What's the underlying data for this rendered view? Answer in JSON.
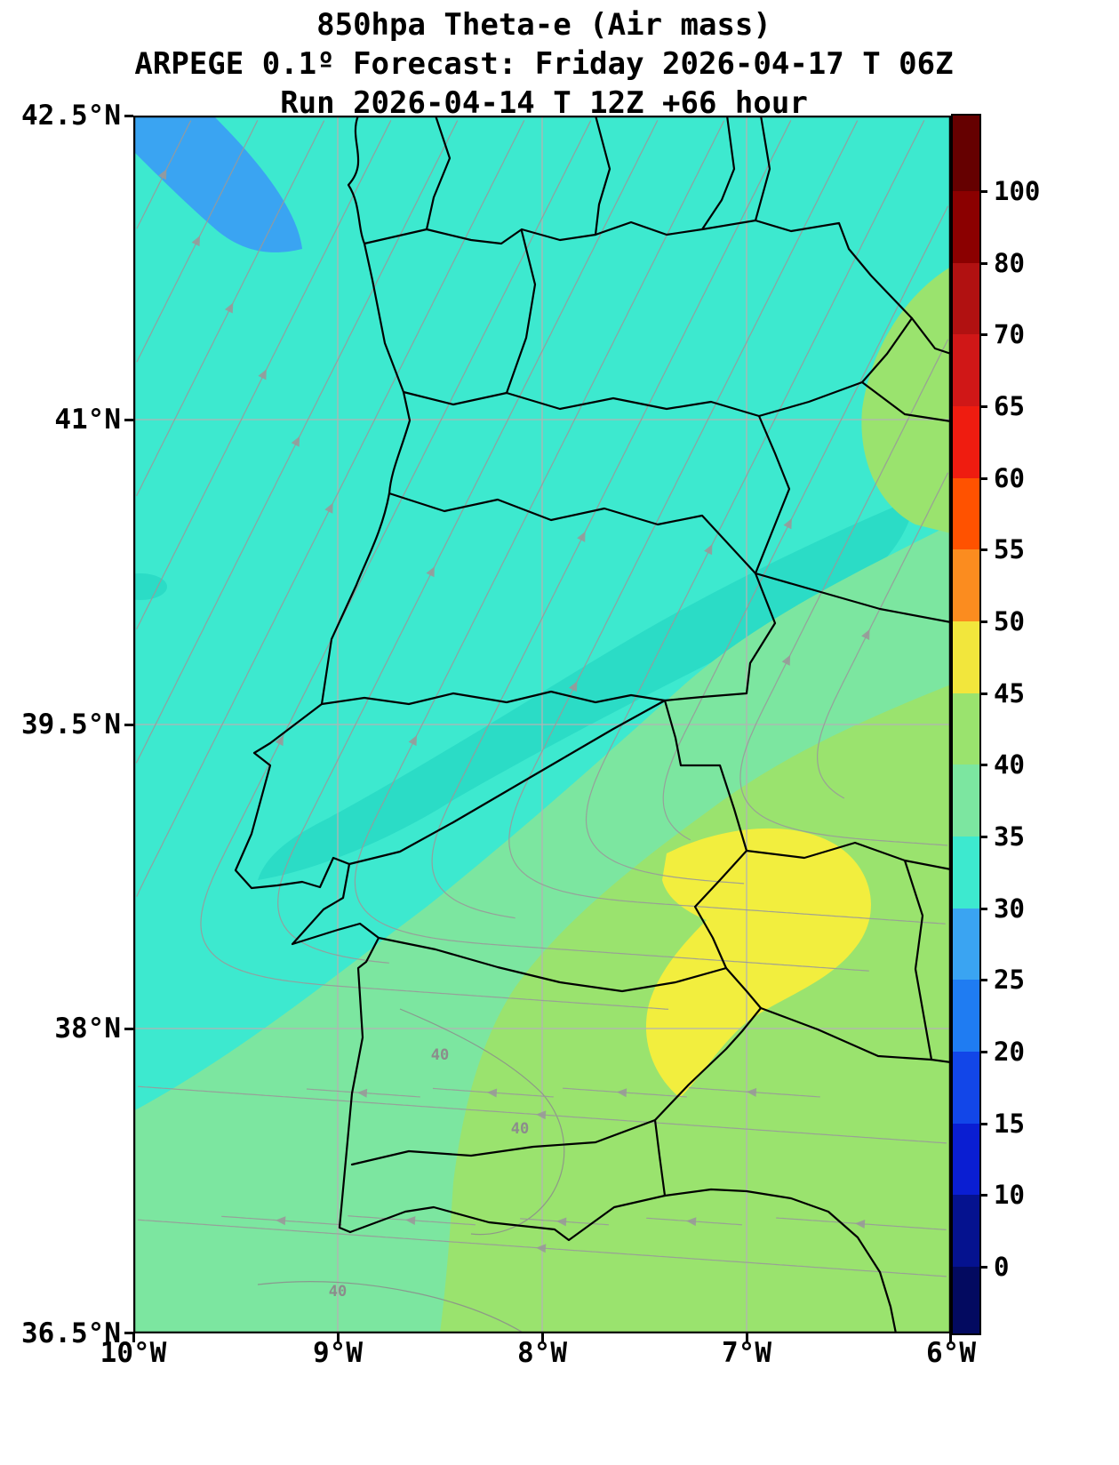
{
  "title": {
    "line1": "850hpa Theta-e (Air mass)",
    "line2": "ARPEGE 0.1º Forecast: Friday 2026-04-17 T 06Z",
    "line3": "Run 2026-04-14 T 12Z +66 hour"
  },
  "axes": {
    "y_ticks": [
      "42.5°N",
      "41°N",
      "39.5°N",
      "38°N",
      "36.5°N"
    ],
    "x_ticks": [
      "10°W",
      "9°W",
      "8°W",
      "7°W",
      "6°W"
    ]
  },
  "colorbar": {
    "tick_labels": [
      "100",
      "80",
      "70",
      "65",
      "60",
      "55",
      "50",
      "45",
      "40",
      "35",
      "30",
      "25",
      "20",
      "15",
      "10",
      "0"
    ],
    "segment_colors_top_to_bottom": [
      "#650000",
      "#8b0000",
      "#b11111",
      "#d01717",
      "#ef1c10",
      "#ff5200",
      "#fb8c1f",
      "#f2e63c",
      "#9ae36e",
      "#7ce6a0",
      "#3de9cf",
      "#3aa4f2",
      "#1f7cf2",
      "#1246e8",
      "#0a1ed2",
      "#05128f",
      "#030a60"
    ]
  },
  "map": {
    "colors": {
      "ocean_cyan": "#3de9cf",
      "teal_band": "#2bdcc6",
      "green_35_40": "#7ce6a0",
      "green_40_45": "#9ae36e",
      "yellow_45_50": "#f2ee3e",
      "blue_25_30": "#3aa4f2"
    },
    "contour_labels": [
      "40",
      "40",
      "40"
    ],
    "streamline_color": "#999999",
    "grid_color": "#b3b3b3",
    "border_color": "#000000"
  }
}
